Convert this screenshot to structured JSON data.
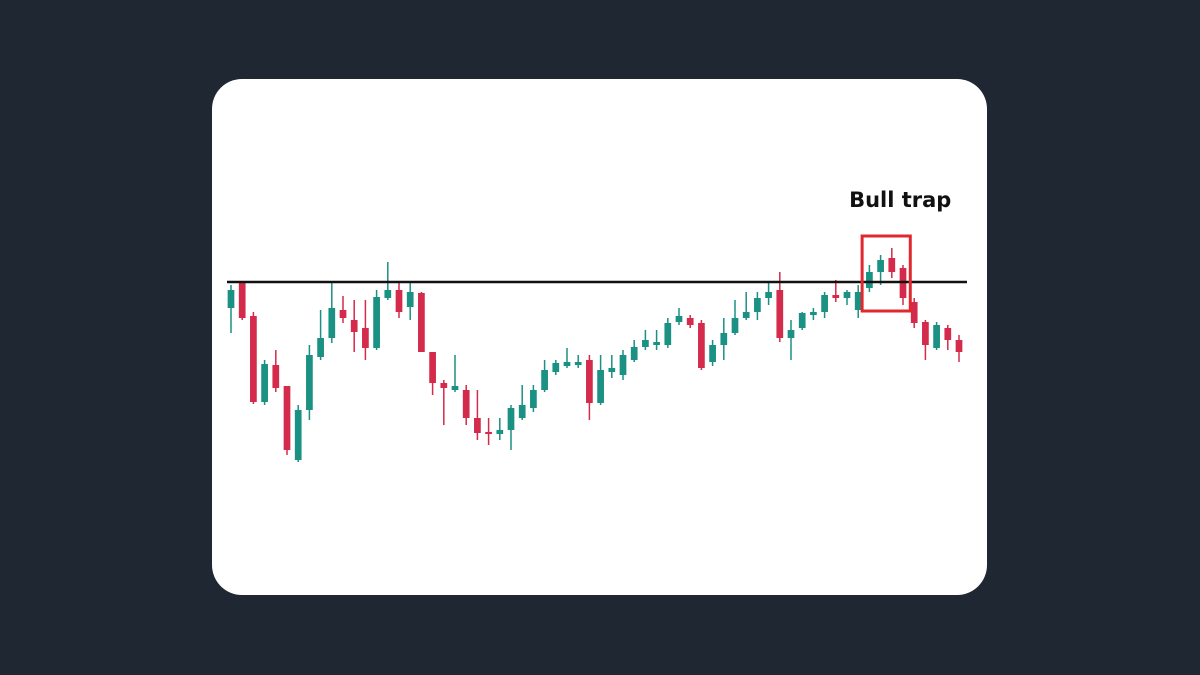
{
  "chart_data": {
    "type": "candlestick",
    "ylim": [
      0,
      300
    ],
    "up_color": "#1a9183",
    "down_color": "#d42a4c",
    "resistance": 218,
    "annotation": {
      "text": "Bull trap",
      "candles": [
        57,
        60
      ],
      "color": "#e0282e"
    },
    "open": [
      192,
      217,
      184,
      98,
      135,
      114,
      40,
      90,
      143,
      162,
      190,
      180,
      172,
      152,
      202,
      210,
      193,
      207,
      148,
      117,
      110,
      110,
      82,
      68,
      66,
      70,
      82,
      92,
      110,
      128,
      134,
      135,
      140,
      97,
      128,
      125,
      140,
      153,
      155,
      155,
      178,
      182,
      177,
      138,
      155,
      167,
      182,
      188,
      202,
      210,
      162,
      172,
      185,
      188,
      205,
      202,
      190,
      212,
      228,
      242,
      232,
      198,
      178,
      152,
      172,
      160
    ],
    "high": [
      215,
      219,
      188,
      140,
      150,
      114,
      95,
      155,
      190,
      218,
      204,
      200,
      200,
      210,
      238,
      218,
      218,
      208,
      148,
      120,
      145,
      115,
      110,
      82,
      82,
      95,
      115,
      115,
      140,
      140,
      152,
      145,
      145,
      145,
      145,
      150,
      160,
      170,
      170,
      182,
      192,
      185,
      180,
      160,
      182,
      200,
      208,
      208,
      218,
      228,
      180,
      188,
      192,
      208,
      220,
      210,
      215,
      235,
      245,
      252,
      235,
      202,
      180,
      178,
      175,
      165
    ],
    "low": [
      167,
      180,
      96,
      95,
      108,
      45,
      38,
      80,
      140,
      157,
      177,
      148,
      140,
      150,
      200,
      182,
      180,
      148,
      105,
      75,
      108,
      75,
      60,
      55,
      60,
      50,
      80,
      88,
      108,
      125,
      132,
      132,
      80,
      95,
      122,
      120,
      138,
      150,
      150,
      152,
      175,
      172,
      130,
      134,
      140,
      165,
      180,
      180,
      195,
      158,
      140,
      170,
      180,
      182,
      198,
      195,
      182,
      208,
      215,
      222,
      195,
      172,
      140,
      150,
      150,
      138
    ],
    "close": [
      210,
      182,
      98,
      136,
      112,
      50,
      90,
      145,
      162,
      192,
      182,
      168,
      152,
      203,
      210,
      188,
      208,
      148,
      117,
      112,
      114,
      82,
      67,
      66,
      70,
      92,
      95,
      110,
      130,
      137,
      138,
      138,
      97,
      130,
      132,
      145,
      153,
      160,
      158,
      177,
      184,
      175,
      132,
      155,
      167,
      182,
      188,
      202,
      208,
      162,
      170,
      187,
      188,
      205,
      202,
      208,
      208,
      228,
      240,
      228,
      202,
      177,
      155,
      175,
      160,
      148
    ]
  }
}
